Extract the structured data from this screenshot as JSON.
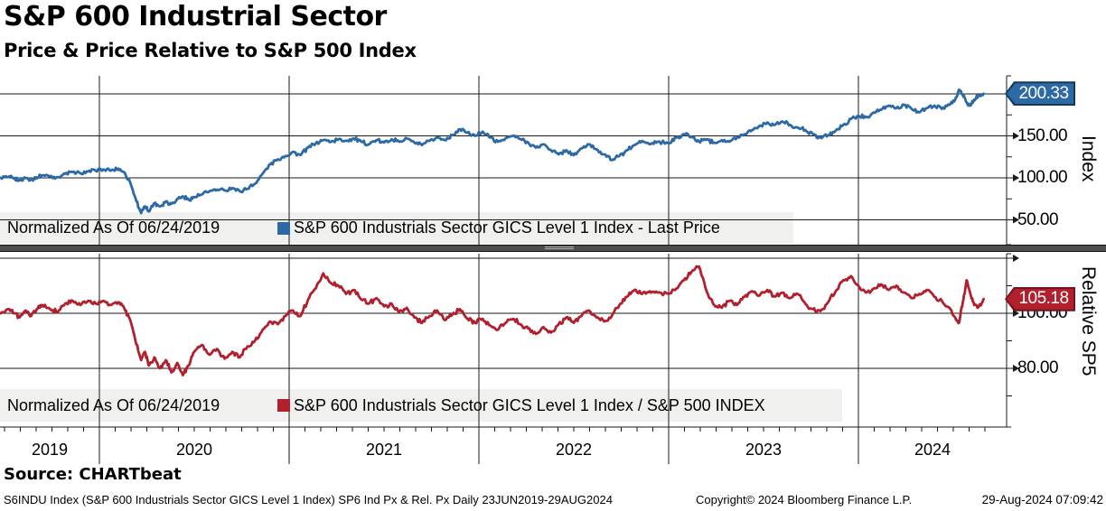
{
  "header": {
    "title": "S&P 600 Industrial Sector",
    "subtitle": "Price & Price Relative to S&P 500 Index"
  },
  "colors": {
    "index_line": "#2d6aa5",
    "relative_line": "#b2202e",
    "index_tag_border": "#13395f",
    "relative_tag_border": "#731220",
    "legend_bg": "#f0f0ef",
    "grid": "#1a1a1a",
    "splitter": "#4d4d4d"
  },
  "panels": {
    "top": {
      "legend_normalized": "Normalized As Of 06/24/2019",
      "legend_series": "S&P 600 Industrials Sector GICS Level 1 Index - Last Price",
      "axis_title": "Index",
      "last_price_label": "200.33",
      "tick_labels": [
        {
          "value": 150,
          "label": "150.00"
        },
        {
          "value": 100,
          "label": "100.00"
        },
        {
          "value": 50,
          "label": "50.00"
        }
      ]
    },
    "bottom": {
      "legend_normalized": "Normalized As Of 06/24/2019",
      "legend_series": "S&P 600 Industrials Sector GICS Level 1 Index / S&P 500 INDEX",
      "axis_title": "Relative SP5",
      "last_price_label": "105.18",
      "tick_labels": [
        {
          "value": 100,
          "label": "100.00"
        },
        {
          "value": 80,
          "label": "80.00"
        }
      ]
    }
  },
  "x_axis": {
    "year_labels": [
      "2019",
      "2020",
      "2021",
      "2022",
      "2023",
      "2024"
    ]
  },
  "footer": {
    "source": "Source: CHARTbeat",
    "description": "S6INDU Index (S&P 600 Industrials Sector GICS Level 1 Index) SP6 Ind Px & Rel. Px  Daily 23JUN2019-29AUG2024",
    "copyright": "Copyright© 2024 Bloomberg Finance L.P.",
    "timestamp": "29-Aug-2024 07:09:42"
  },
  "chart_data": [
    {
      "type": "line",
      "panel": "top",
      "name": "S&P 600 Industrials Sector GICS Level 1 Index - Last Price",
      "normalized_as_of": "06/24/2019",
      "last_value": 200.33,
      "color": "#2d6aa5",
      "ylabel": "Index",
      "yticks_major": [
        200,
        150,
        100,
        50
      ],
      "yticks_minor": [
        175,
        125,
        75
      ],
      "x_start": "23JUN2019",
      "x_end": "29AUG2024",
      "points": [
        [
          2019.48,
          100
        ],
        [
          2019.52,
          101
        ],
        [
          2019.55,
          99
        ],
        [
          2019.58,
          97.5
        ],
        [
          2019.61,
          100
        ],
        [
          2019.64,
          98
        ],
        [
          2019.67,
          100.5
        ],
        [
          2019.7,
          103
        ],
        [
          2019.74,
          102
        ],
        [
          2019.78,
          101
        ],
        [
          2019.82,
          105
        ],
        [
          2019.86,
          107
        ],
        [
          2019.9,
          105.5
        ],
        [
          2019.94,
          107.5
        ],
        [
          2019.98,
          108.5
        ],
        [
          2020.02,
          110
        ],
        [
          2020.06,
          108.5
        ],
        [
          2020.1,
          111
        ],
        [
          2020.13,
          107
        ],
        [
          2020.16,
          96
        ],
        [
          2020.19,
          76
        ],
        [
          2020.22,
          58
        ],
        [
          2020.24,
          66
        ],
        [
          2020.26,
          60
        ],
        [
          2020.29,
          70
        ],
        [
          2020.32,
          66
        ],
        [
          2020.35,
          72
        ],
        [
          2020.38,
          69
        ],
        [
          2020.41,
          75
        ],
        [
          2020.44,
          78
        ],
        [
          2020.47,
          74
        ],
        [
          2020.5,
          77
        ],
        [
          2020.54,
          80
        ],
        [
          2020.58,
          84
        ],
        [
          2020.62,
          86
        ],
        [
          2020.66,
          85
        ],
        [
          2020.7,
          88
        ],
        [
          2020.74,
          84
        ],
        [
          2020.78,
          87
        ],
        [
          2020.82,
          93
        ],
        [
          2020.86,
          105
        ],
        [
          2020.9,
          116
        ],
        [
          2020.94,
          122
        ],
        [
          2020.98,
          126
        ],
        [
          2021.02,
          131
        ],
        [
          2021.06,
          127
        ],
        [
          2021.1,
          136
        ],
        [
          2021.14,
          141
        ],
        [
          2021.18,
          145
        ],
        [
          2021.22,
          143
        ],
        [
          2021.26,
          146
        ],
        [
          2021.3,
          144
        ],
        [
          2021.34,
          147
        ],
        [
          2021.38,
          143
        ],
        [
          2021.42,
          140
        ],
        [
          2021.46,
          145
        ],
        [
          2021.5,
          142
        ],
        [
          2021.54,
          146
        ],
        [
          2021.58,
          143
        ],
        [
          2021.62,
          147
        ],
        [
          2021.66,
          142
        ],
        [
          2021.7,
          139
        ],
        [
          2021.74,
          144
        ],
        [
          2021.78,
          148
        ],
        [
          2021.82,
          145
        ],
        [
          2021.86,
          151
        ],
        [
          2021.9,
          158
        ],
        [
          2021.94,
          154
        ],
        [
          2021.98,
          150
        ],
        [
          2022.02,
          155
        ],
        [
          2022.06,
          148
        ],
        [
          2022.1,
          143
        ],
        [
          2022.14,
          147
        ],
        [
          2022.18,
          150
        ],
        [
          2022.22,
          146
        ],
        [
          2022.26,
          142
        ],
        [
          2022.3,
          136
        ],
        [
          2022.34,
          140
        ],
        [
          2022.38,
          133
        ],
        [
          2022.42,
          128
        ],
        [
          2022.46,
          133
        ],
        [
          2022.5,
          127
        ],
        [
          2022.54,
          135
        ],
        [
          2022.58,
          140
        ],
        [
          2022.62,
          134
        ],
        [
          2022.66,
          128
        ],
        [
          2022.7,
          121
        ],
        [
          2022.74,
          126
        ],
        [
          2022.78,
          133
        ],
        [
          2022.82,
          139
        ],
        [
          2022.86,
          144
        ],
        [
          2022.9,
          140
        ],
        [
          2022.94,
          143
        ],
        [
          2023.0,
          141
        ],
        [
          2023.04,
          148
        ],
        [
          2023.08,
          152
        ],
        [
          2023.12,
          149
        ],
        [
          2023.16,
          143
        ],
        [
          2023.2,
          146
        ],
        [
          2023.24,
          142
        ],
        [
          2023.28,
          145
        ],
        [
          2023.32,
          143
        ],
        [
          2023.36,
          148
        ],
        [
          2023.4,
          152
        ],
        [
          2023.44,
          157
        ],
        [
          2023.48,
          162
        ],
        [
          2023.52,
          166
        ],
        [
          2023.56,
          163
        ],
        [
          2023.6,
          167
        ],
        [
          2023.64,
          163
        ],
        [
          2023.68,
          160
        ],
        [
          2023.72,
          157
        ],
        [
          2023.76,
          152
        ],
        [
          2023.8,
          148
        ],
        [
          2023.84,
          151
        ],
        [
          2023.88,
          156
        ],
        [
          2023.92,
          163
        ],
        [
          2023.96,
          170
        ],
        [
          2024.0,
          174
        ],
        [
          2024.04,
          172
        ],
        [
          2024.08,
          178
        ],
        [
          2024.12,
          181
        ],
        [
          2024.16,
          186
        ],
        [
          2024.2,
          183
        ],
        [
          2024.24,
          187
        ],
        [
          2024.28,
          182
        ],
        [
          2024.32,
          178
        ],
        [
          2024.36,
          183
        ],
        [
          2024.4,
          186
        ],
        [
          2024.44,
          182
        ],
        [
          2024.48,
          187
        ],
        [
          2024.51,
          193
        ],
        [
          2024.53,
          205
        ],
        [
          2024.55,
          199
        ],
        [
          2024.57,
          190
        ],
        [
          2024.59,
          186
        ],
        [
          2024.61,
          193
        ],
        [
          2024.63,
          197
        ],
        [
          2024.66,
          200.33
        ]
      ]
    },
    {
      "type": "line",
      "panel": "bottom",
      "name": "S&P 600 Industrials Sector GICS Level 1 Index / S&P 500 INDEX",
      "normalized_as_of": "06/24/2019",
      "last_value": 105.18,
      "color": "#b2202e",
      "ylabel": "Relative SP5",
      "yticks_major": [
        120,
        100,
        80
      ],
      "yticks_minor": [
        110,
        90,
        70
      ],
      "x_start": "23JUN2019",
      "x_end": "29AUG2024",
      "points": [
        [
          2019.48,
          100
        ],
        [
          2019.52,
          101.5
        ],
        [
          2019.55,
          100
        ],
        [
          2019.58,
          98.5
        ],
        [
          2019.61,
          101
        ],
        [
          2019.64,
          99
        ],
        [
          2019.67,
          101.5
        ],
        [
          2019.7,
          103
        ],
        [
          2019.74,
          101.5
        ],
        [
          2019.78,
          100.5
        ],
        [
          2019.82,
          103.5
        ],
        [
          2019.86,
          104.5
        ],
        [
          2019.9,
          103
        ],
        [
          2019.94,
          104.5
        ],
        [
          2019.98,
          103.5
        ],
        [
          2020.02,
          104.5
        ],
        [
          2020.06,
          103
        ],
        [
          2020.1,
          104
        ],
        [
          2020.13,
          102
        ],
        [
          2020.16,
          98
        ],
        [
          2020.19,
          90
        ],
        [
          2020.22,
          83
        ],
        [
          2020.24,
          86
        ],
        [
          2020.26,
          81
        ],
        [
          2020.29,
          84
        ],
        [
          2020.32,
          80
        ],
        [
          2020.35,
          83
        ],
        [
          2020.38,
          78.5
        ],
        [
          2020.41,
          82
        ],
        [
          2020.44,
          77.5
        ],
        [
          2020.47,
          81
        ],
        [
          2020.5,
          86
        ],
        [
          2020.54,
          88.5
        ],
        [
          2020.58,
          85
        ],
        [
          2020.62,
          87
        ],
        [
          2020.66,
          83.5
        ],
        [
          2020.7,
          86
        ],
        [
          2020.74,
          84
        ],
        [
          2020.78,
          88
        ],
        [
          2020.82,
          90
        ],
        [
          2020.86,
          94
        ],
        [
          2020.9,
          97
        ],
        [
          2020.94,
          96
        ],
        [
          2020.98,
          99
        ],
        [
          2021.02,
          101
        ],
        [
          2021.06,
          99
        ],
        [
          2021.1,
          105
        ],
        [
          2021.14,
          109
        ],
        [
          2021.18,
          114.5
        ],
        [
          2021.22,
          111
        ],
        [
          2021.26,
          110
        ],
        [
          2021.3,
          107
        ],
        [
          2021.34,
          108.5
        ],
        [
          2021.38,
          105
        ],
        [
          2021.42,
          103.5
        ],
        [
          2021.46,
          105.5
        ],
        [
          2021.5,
          102.5
        ],
        [
          2021.54,
          103.5
        ],
        [
          2021.58,
          100.5
        ],
        [
          2021.62,
          102
        ],
        [
          2021.66,
          98.5
        ],
        [
          2021.7,
          96.5
        ],
        [
          2021.74,
          99
        ],
        [
          2021.78,
          101
        ],
        [
          2021.82,
          97.5
        ],
        [
          2021.86,
          99.5
        ],
        [
          2021.9,
          101.5
        ],
        [
          2021.94,
          98
        ],
        [
          2021.98,
          96.5
        ],
        [
          2022.02,
          98
        ],
        [
          2022.06,
          95.5
        ],
        [
          2022.1,
          94
        ],
        [
          2022.14,
          96.5
        ],
        [
          2022.18,
          98
        ],
        [
          2022.22,
          96
        ],
        [
          2022.26,
          94.5
        ],
        [
          2022.3,
          92.5
        ],
        [
          2022.34,
          95
        ],
        [
          2022.38,
          93
        ],
        [
          2022.42,
          96
        ],
        [
          2022.46,
          98.5
        ],
        [
          2022.5,
          96.5
        ],
        [
          2022.54,
          99
        ],
        [
          2022.58,
          101
        ],
        [
          2022.62,
          98.5
        ],
        [
          2022.66,
          97
        ],
        [
          2022.7,
          99
        ],
        [
          2022.74,
          103
        ],
        [
          2022.78,
          106
        ],
        [
          2022.82,
          108.5
        ],
        [
          2022.86,
          107
        ],
        [
          2022.9,
          108
        ],
        [
          2022.94,
          107.5
        ],
        [
          2023.0,
          107
        ],
        [
          2023.04,
          109
        ],
        [
          2023.08,
          112
        ],
        [
          2023.12,
          115
        ],
        [
          2023.16,
          117
        ],
        [
          2023.2,
          108
        ],
        [
          2023.24,
          103
        ],
        [
          2023.28,
          102
        ],
        [
          2023.32,
          104.5
        ],
        [
          2023.36,
          103
        ],
        [
          2023.4,
          106
        ],
        [
          2023.44,
          108
        ],
        [
          2023.48,
          106.5
        ],
        [
          2023.52,
          108.5
        ],
        [
          2023.56,
          106
        ],
        [
          2023.6,
          107.5
        ],
        [
          2023.64,
          105.5
        ],
        [
          2023.68,
          107
        ],
        [
          2023.72,
          103.5
        ],
        [
          2023.76,
          101.5
        ],
        [
          2023.8,
          100.8
        ],
        [
          2023.84,
          104
        ],
        [
          2023.88,
          108
        ],
        [
          2023.92,
          112
        ],
        [
          2023.96,
          113.5
        ],
        [
          2024.0,
          110
        ],
        [
          2024.04,
          107.5
        ],
        [
          2024.08,
          109
        ],
        [
          2024.12,
          110.5
        ],
        [
          2024.16,
          108.5
        ],
        [
          2024.2,
          110
        ],
        [
          2024.24,
          107.5
        ],
        [
          2024.28,
          105.5
        ],
        [
          2024.32,
          107
        ],
        [
          2024.36,
          108.5
        ],
        [
          2024.4,
          106
        ],
        [
          2024.44,
          104.5
        ],
        [
          2024.48,
          102
        ],
        [
          2024.51,
          98.5
        ],
        [
          2024.53,
          96.5
        ],
        [
          2024.55,
          104
        ],
        [
          2024.57,
          112
        ],
        [
          2024.59,
          107
        ],
        [
          2024.61,
          103
        ],
        [
          2024.63,
          102
        ],
        [
          2024.66,
          105.18
        ]
      ]
    }
  ]
}
